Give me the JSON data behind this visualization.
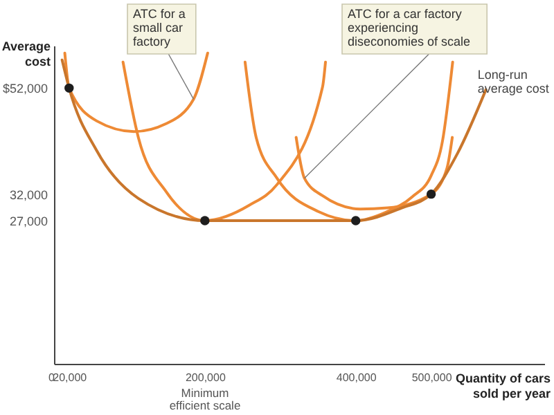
{
  "chart_data": {
    "type": "line",
    "xlabel": "Quantity of cars sold per year",
    "ylabel": "Average cost",
    "xlim": [
      0,
      650000
    ],
    "ylim": [
      0,
      60000
    ],
    "xticks": [
      0,
      {
        "value": 20000,
        "label": "20,000"
      },
      {
        "value": 200000,
        "label": "200,000"
      },
      {
        "value": 400000,
        "label": "400,000"
      },
      {
        "value": 500000,
        "label": "500,000"
      }
    ],
    "yticks": [
      {
        "value": 27000,
        "label": "27,000"
      },
      {
        "value": 32000,
        "label": "32,000"
      },
      {
        "value": 52000,
        "label": "$52,000"
      }
    ],
    "series": [
      {
        "color": "#ee8a35",
        "line_style": "solid",
        "x": [
          14300,
          20000,
          56600,
          106000,
          148700,
          185000,
          203700
        ],
        "values": [
          58600,
          52000,
          45800,
          43800,
          45300,
          49900,
          58600
        ]
      },
      {
        "color": "#ee8a35",
        "line_style": "solid",
        "x": [
          91500,
          111800,
          148500,
          200000,
          258800,
          295600,
          356000,
          359900
        ],
        "values": [
          56900,
          42700,
          32500,
          27000,
          29900,
          33800,
          52200,
          56900
        ]
      },
      {
        "color": "#ee8a35",
        "line_style": "solid",
        "x": [
          253300,
          268000,
          295600,
          350700,
          400000,
          440000,
          475000,
          500000,
          515000,
          528500
        ],
        "values": [
          56900,
          42700,
          35000,
          28700,
          27000,
          28600,
          31500,
          35500,
          42000,
          56900
        ]
      },
      {
        "color": "#ee8a35",
        "line_style": "solid",
        "x": [
          321000,
          332000,
          356000,
          406000,
          442000,
          500000,
          521000,
          528000
        ],
        "values": [
          42700,
          35000,
          31700,
          29200,
          29400,
          32000,
          36900,
          42700
        ]
      },
      {
        "name": "Long-run average cost",
        "color": "#c9762c",
        "line_style": "solid",
        "x": [
          10700,
          20000,
          56600,
          111800,
          200000,
          400000,
          461000,
          500000,
          535000,
          572600
        ],
        "values": [
          57300,
          52000,
          40200,
          31200,
          27000,
          27000,
          29400,
          32000,
          39700,
          51700
        ]
      },
      {
        "type": "scatter",
        "marker": "circle",
        "color": "#1e1e1e",
        "x": [
          20000,
          200000,
          400000,
          500000
        ],
        "values": [
          52000,
          27000,
          27000,
          32000
        ]
      }
    ],
    "annotations": [
      {
        "text": "ATC for a small car factory",
        "x": 185000,
        "y": 49900
      },
      {
        "text": "ATC for a car factory experiencing diseconomies of scale",
        "x": 332000,
        "y": 35000
      },
      "Minimum efficient scale"
    ]
  }
}
